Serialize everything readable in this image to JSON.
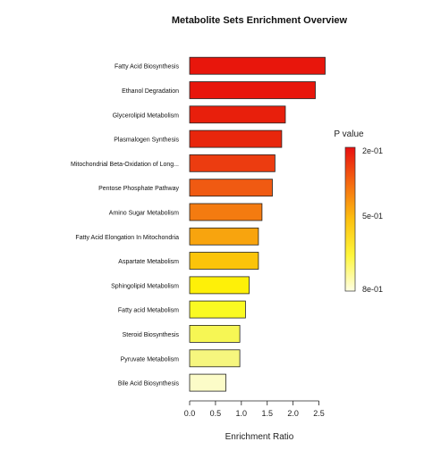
{
  "chart_data": {
    "type": "bar",
    "orientation": "horizontal",
    "title": "Metabolite Sets Enrichment Overview",
    "xlabel": "Enrichment Ratio",
    "ylabel": "",
    "xlim": [
      0,
      2.75
    ],
    "xticks": [
      "0.0",
      "0.5",
      "1.0",
      "1.5",
      "2.0",
      "2.5"
    ],
    "grid": false,
    "categories": [
      "Fatty Acid Biosynthesis",
      "Ethanol Degradation",
      "Glycerolipid Metabolism",
      "Plasmalogen Synthesis",
      "Mitochondrial Beta-Oxidation of Long...",
      "Pentose Phosphate Pathway",
      "Amino Sugar Metabolism",
      "Fatty Acid Elongation In Mitochondria",
      "Aspartate Metabolism",
      "Sphingolipid Metabolism",
      "Fatty acid Metabolism",
      "Steroid Biosynthesis",
      "Pyruvate Metabolism",
      "Bile Acid Biosynthesis"
    ],
    "values": [
      2.62,
      2.43,
      1.85,
      1.78,
      1.65,
      1.6,
      1.4,
      1.33,
      1.33,
      1.15,
      1.08,
      0.97,
      0.97,
      0.7
    ],
    "colors": [
      "#e8160c",
      "#e8160c",
      "#e81f0c",
      "#e8260c",
      "#ec3c10",
      "#f05a12",
      "#f47b10",
      "#f8a40e",
      "#fbc40a",
      "#fef008",
      "#fafa22",
      "#f6f654",
      "#f6f67e",
      "#fcfcc8"
    ],
    "legend": {
      "title": "P value",
      "position": "right",
      "labels": [
        "2e-01",
        "5e-01",
        "8e-01"
      ],
      "color_stops": [
        "#e81010",
        "#f56a10",
        "#fcc010",
        "#fef63a",
        "#fefee4"
      ]
    }
  }
}
